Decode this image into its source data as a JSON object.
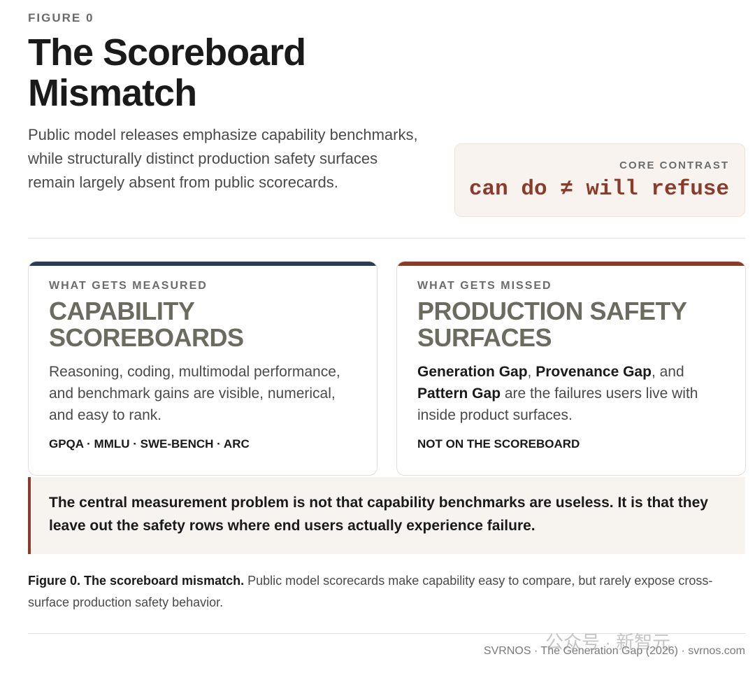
{
  "header": {
    "eyebrow": "FIGURE 0",
    "title": "The Scoreboard Mismatch",
    "lede": "Public model releases emphasize capability benchmarks, while structurally distinct production safety surfaces remain largely absent from public scorecards."
  },
  "core_contrast": {
    "label": "CORE CONTRAST",
    "formula": "can do ≠ will refuse"
  },
  "cards": [
    {
      "kicker": "WHAT GETS MEASURED",
      "heading": "CAPABILITY SCOREBOARDS",
      "body": "Reasoning, coding, multimodal performance, and benchmark gains are visible, numerical, and easy to rank.",
      "footer": "GPQA · MMLU · SWE-BENCH · ARC"
    },
    {
      "kicker": "WHAT GETS MISSED",
      "heading": "PRODUCTION SAFETY SURFACES",
      "body_parts": [
        "Generation Gap",
        ", ",
        "Provenance Gap",
        ", and ",
        "Pattern Gap",
        " are the failures users live with inside product surfaces."
      ],
      "footer": "NOT ON THE SCOREBOARD"
    }
  ],
  "callout": "The central measurement problem is not that capability benchmarks are useless. It is that they leave out the safety rows where end users actually experience failure.",
  "caption": {
    "lead": "Figure 0. The scoreboard mismatch.",
    "text": "Public model scorecards make capability easy to compare, but rarely expose cross-surface production safety behavior."
  },
  "credit": "SVRNOS · The Generation Gap (2026) · svrnos.com",
  "watermark": "公众号 · 新智元"
}
